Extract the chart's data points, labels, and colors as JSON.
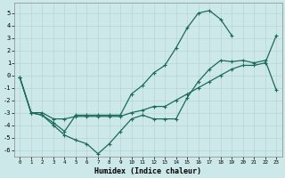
{
  "xlabel": "Humidex (Indice chaleur)",
  "bg_color": "#cde8e8",
  "grid_color": "#b8d4d4",
  "line_color": "#1a6b5a",
  "xlim": [
    -0.5,
    23.5
  ],
  "ylim": [
    -6.5,
    5.8
  ],
  "xticks": [
    0,
    1,
    2,
    3,
    4,
    5,
    6,
    7,
    8,
    9,
    10,
    11,
    12,
    13,
    14,
    15,
    16,
    17,
    18,
    19,
    20,
    21,
    22,
    23
  ],
  "yticks": [
    -6,
    -5,
    -4,
    -3,
    -2,
    -1,
    0,
    1,
    2,
    3,
    4,
    5
  ],
  "line1_x": [
    0,
    1,
    2,
    3,
    4,
    5,
    6,
    7,
    8,
    9,
    10,
    11,
    12,
    13,
    14,
    15,
    16,
    17,
    18,
    19,
    20,
    21,
    22,
    23
  ],
  "line1_y": [
    -0.2,
    -3.0,
    -3.2,
    -4.0,
    -4.8,
    -5.2,
    -5.5,
    -6.3,
    -5.5,
    -4.5,
    -3.5,
    -3.2,
    -3.5,
    -3.5,
    -3.5,
    -1.8,
    -0.5,
    0.5,
    1.2,
    1.1,
    1.2,
    1.0,
    1.2,
    -1.2
  ],
  "line2_x": [
    0,
    1,
    2,
    3,
    4,
    5,
    6,
    7,
    8,
    9,
    10,
    11,
    12,
    13,
    14,
    15,
    16,
    17,
    18,
    19
  ],
  "line2_y": [
    -0.2,
    -3.0,
    -3.2,
    -3.8,
    -4.5,
    -3.2,
    -3.2,
    -3.2,
    -3.2,
    -3.2,
    -1.5,
    -0.8,
    0.2,
    0.8,
    2.2,
    3.8,
    5.0,
    5.2,
    4.5,
    3.2
  ],
  "line3_x": [
    0,
    1,
    2,
    3,
    4,
    5,
    6,
    7,
    8,
    9,
    10,
    11,
    12,
    13,
    14,
    15,
    16,
    17,
    18,
    19,
    20,
    21,
    22,
    23
  ],
  "line3_y": [
    -0.2,
    -3.0,
    -3.0,
    -3.5,
    -3.5,
    -3.3,
    -3.3,
    -3.3,
    -3.3,
    -3.3,
    -3.0,
    -2.8,
    -2.5,
    -2.5,
    -2.0,
    -1.5,
    -1.0,
    -0.5,
    0.0,
    0.5,
    0.8,
    0.8,
    1.0,
    3.2
  ]
}
